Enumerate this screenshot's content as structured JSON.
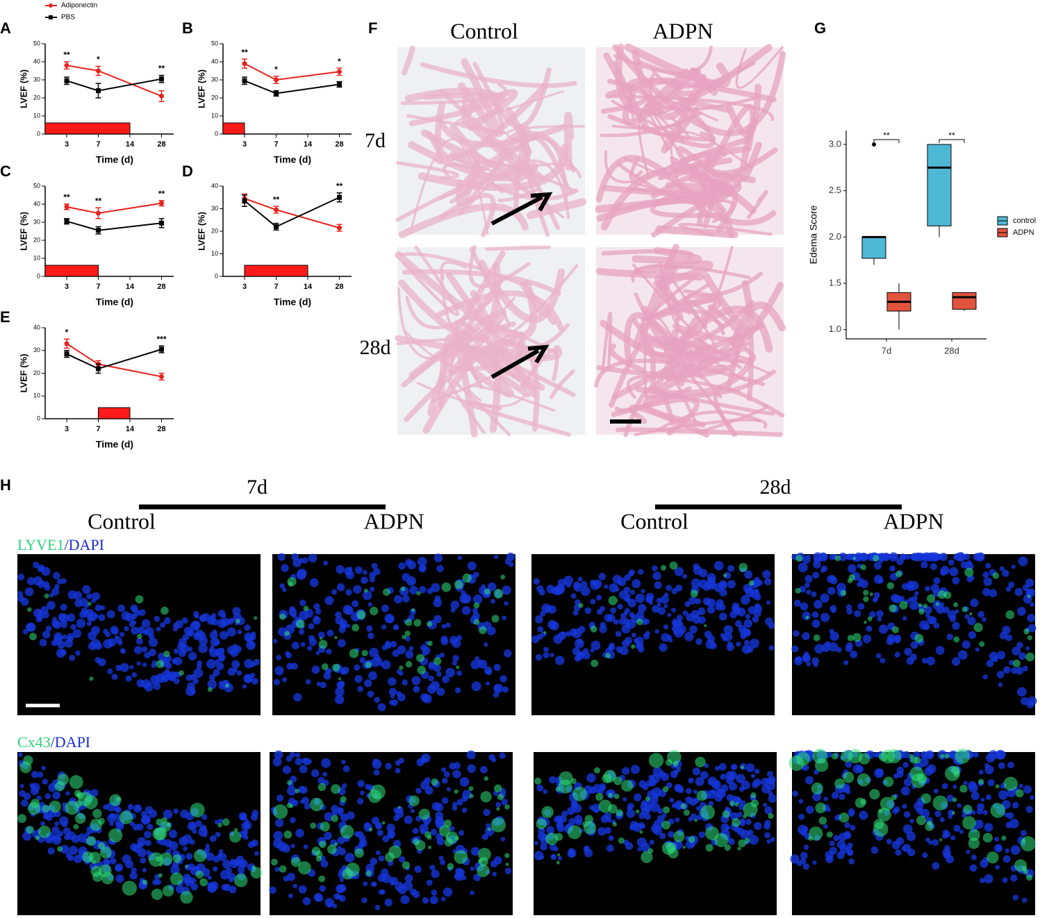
{
  "panels": [
    "A",
    "B",
    "C",
    "D",
    "E",
    "F",
    "G",
    "H"
  ],
  "chart_data": [
    {
      "type": "line",
      "x": [
        "3",
        "7",
        "28"
      ],
      "xticks": [
        "3",
        "7",
        "14",
        "28"
      ],
      "ylim": [
        0,
        50
      ],
      "yticks": [
        0,
        10,
        20,
        30,
        40,
        50
      ],
      "xlabel": "Time (d)",
      "ylabel": "LVEF (%)",
      "treatment": [
        null,
        "14"
      ],
      "treatment_color": "#ff1a1a",
      "series": [
        {
          "name": "Adiponectin",
          "color": "#e8211d",
          "values": [
            38,
            35,
            21
          ],
          "errors": [
            2,
            2.5,
            3
          ]
        },
        {
          "name": "PBS",
          "color": "#000000",
          "values": [
            29.5,
            24,
            30.5
          ],
          "errors": [
            2,
            4,
            2
          ]
        }
      ],
      "annotations": [
        "**",
        "*",
        "**"
      ]
    },
    {
      "type": "line",
      "x": [
        "3",
        "7",
        "28"
      ],
      "xticks": [
        "3",
        "7",
        "14",
        "28"
      ],
      "ylim": [
        0,
        50
      ],
      "yticks": [
        0,
        10,
        20,
        30,
        40,
        50
      ],
      "xlabel": "Time (d)",
      "ylabel": "LVEF (%)",
      "treatment": [
        null,
        "3"
      ],
      "treatment_color": "#ff1a1a",
      "series": [
        {
          "color": "#e8211d",
          "values": [
            39,
            30,
            34.5
          ],
          "errors": [
            2.5,
            2,
            2
          ]
        },
        {
          "color": "#000000",
          "values": [
            29.5,
            22.5,
            27.5
          ],
          "errors": [
            2,
            1.5,
            1.5
          ]
        }
      ],
      "annotations": [
        "**",
        "*",
        "*"
      ]
    },
    {
      "type": "line",
      "x": [
        "3",
        "7",
        "28"
      ],
      "xticks": [
        "3",
        "7",
        "14",
        "28"
      ],
      "ylim": [
        0,
        50
      ],
      "yticks": [
        0,
        10,
        20,
        30,
        40,
        50
      ],
      "xlabel": "Time (d)",
      "ylabel": "LVEF (%)",
      "treatment": [
        null,
        "7"
      ],
      "treatment_color": "#ff1a1a",
      "series": [
        {
          "color": "#e8211d",
          "values": [
            38.5,
            35,
            40.5
          ],
          "errors": [
            1.5,
            3,
            1.5
          ]
        },
        {
          "color": "#000000",
          "values": [
            30.5,
            25.5,
            29.5
          ],
          "errors": [
            1.5,
            2,
            2.5
          ]
        }
      ],
      "annotations": [
        "**",
        "**",
        "**"
      ]
    },
    {
      "type": "line",
      "x": [
        "3",
        "7",
        "28"
      ],
      "xticks": [
        "3",
        "7",
        "14",
        "28"
      ],
      "ylim": [
        0,
        40
      ],
      "yticks": [
        0,
        10,
        20,
        30,
        40
      ],
      "xlabel": "Time (d)",
      "ylabel": "LVEF (%)",
      "treatment": [
        "3",
        "14"
      ],
      "treatment_color": "#ff1a1a",
      "series": [
        {
          "color": "#e8211d",
          "values": [
            34.5,
            29.5,
            21.5
          ],
          "errors": [
            2,
            1.5,
            1.5
          ]
        },
        {
          "color": "#000000",
          "values": [
            33.5,
            22,
            35
          ],
          "errors": [
            2.5,
            1.5,
            2
          ]
        }
      ],
      "annotations": [
        null,
        "**",
        "**"
      ]
    },
    {
      "type": "line",
      "x": [
        "3",
        "7",
        "28"
      ],
      "xticks": [
        "3",
        "7",
        "14",
        "28"
      ],
      "ylim": [
        0,
        40
      ],
      "yticks": [
        0,
        10,
        20,
        30,
        40
      ],
      "xlabel": "Time (d)",
      "ylabel": "LVEF (%)",
      "treatment": [
        "7",
        "14"
      ],
      "treatment_color": "#ff1a1a",
      "series": [
        {
          "color": "#e8211d",
          "values": [
            33,
            24,
            18.5
          ],
          "errors": [
            2,
            1.5,
            1.5
          ]
        },
        {
          "color": "#000000",
          "values": [
            28.5,
            22,
            30.5
          ],
          "errors": [
            1.5,
            2,
            1.5
          ]
        }
      ],
      "annotations": [
        "*",
        null,
        "***"
      ]
    },
    {
      "type": "box",
      "categories": [
        "7d",
        "28d"
      ],
      "ylabel": "Edema Score",
      "ylim": [
        0.9,
        3.15
      ],
      "yticks": [
        {
          "value": 1,
          "label": "1.0"
        },
        1.5,
        {
          "value": 2,
          "label": "2.0"
        },
        2.5,
        {
          "value": 3,
          "label": "3.0"
        }
      ],
      "series": [
        {
          "name": "control",
          "color": "#4fb8d4",
          "boxes": [
            {
              "min": 1.7,
              "q1": 1.77,
              "median": 2.0,
              "q3": 2.0,
              "max": 2.0,
              "outliers": [
                3.0
              ]
            },
            {
              "min": 2.0,
              "q1": 2.12,
              "median": 2.75,
              "q3": 3.0,
              "max": 3.0
            }
          ]
        },
        {
          "name": "ADPN",
          "color": "#e2533e",
          "boxes": [
            {
              "min": 1.0,
              "q1": 1.2,
              "median": 1.3,
              "q3": 1.4,
              "max": 1.5
            },
            {
              "min": 1.2,
              "q1": 1.22,
              "median": 1.35,
              "q3": 1.4,
              "max": 1.4
            }
          ]
        }
      ],
      "annotations": [
        "**",
        "**"
      ]
    }
  ],
  "histology": {
    "columns": [
      "Control",
      "ADPN"
    ],
    "rows": [
      "7d",
      "28d"
    ]
  },
  "immunofluorescence": {
    "timepoints": [
      "7d",
      "28d"
    ],
    "groups": [
      "Control",
      "ADPN",
      "Control",
      "ADPN"
    ],
    "stains": [
      {
        "marker": "LYVE1",
        "counterstain": "/DAPI"
      },
      {
        "marker": "Cx43",
        "counterstain": "/DAPI"
      }
    ]
  }
}
